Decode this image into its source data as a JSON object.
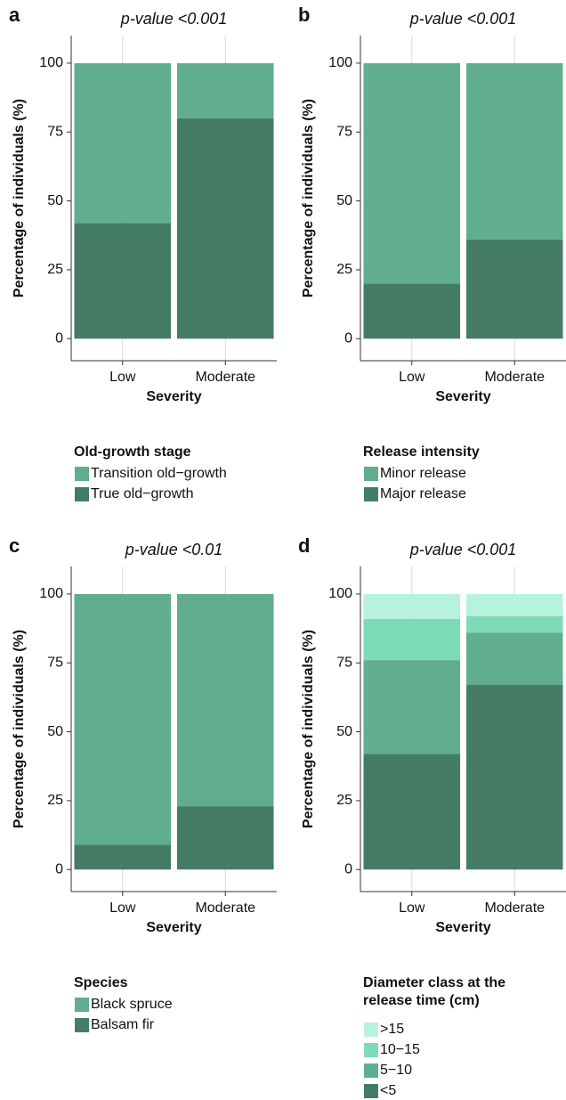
{
  "chart_data": [
    {
      "type": "bar",
      "stacked": true,
      "panel": "a",
      "title": "p-value <0.001",
      "xlabel": "Severity",
      "ylabel": "Percentage of individuals (%)",
      "categories": [
        "Low",
        "Moderate"
      ],
      "legend_title": "Old-growth stage",
      "series": [
        {
          "name": "True old−growth",
          "color": "#457c65",
          "values": [
            42,
            80
          ]
        },
        {
          "name": "Transition old−growth",
          "color": "#60ae8e",
          "values": [
            58,
            20
          ]
        }
      ],
      "ylim": [
        -8,
        110
      ],
      "yticks": [
        0,
        25,
        50,
        75,
        100
      ],
      "grid": "x"
    },
    {
      "type": "bar",
      "stacked": true,
      "panel": "b",
      "title": "p-value <0.001",
      "xlabel": "Severity",
      "ylabel": "Percentage of individuals (%)",
      "categories": [
        "Low",
        "Moderate"
      ],
      "legend_title": "Release intensity",
      "series": [
        {
          "name": "Major release",
          "color": "#457c65",
          "values": [
            20,
            36
          ]
        },
        {
          "name": "Minor release",
          "color": "#60ae8e",
          "values": [
            80,
            64
          ]
        }
      ],
      "ylim": [
        -8,
        110
      ],
      "yticks": [
        0,
        25,
        50,
        75,
        100
      ],
      "grid": "x"
    },
    {
      "type": "bar",
      "stacked": true,
      "panel": "c",
      "title": "p-value <0.01",
      "xlabel": "Severity",
      "ylabel": "Percentage of individuals (%)",
      "categories": [
        "Low",
        "Moderate"
      ],
      "legend_title": "Species",
      "series": [
        {
          "name": "Balsam fir",
          "color": "#457c65",
          "values": [
            9,
            23
          ]
        },
        {
          "name": "Black spruce",
          "color": "#60ae8e",
          "values": [
            91,
            77
          ]
        }
      ],
      "ylim": [
        -8,
        110
      ],
      "yticks": [
        0,
        25,
        50,
        75,
        100
      ],
      "grid": "x"
    },
    {
      "type": "bar",
      "stacked": true,
      "panel": "d",
      "title": "p-value <0.001",
      "xlabel": "Severity",
      "ylabel": "Percentage of individuals (%)",
      "categories": [
        "Low",
        "Moderate"
      ],
      "legend_title": "Diameter class at the release time (cm)",
      "series": [
        {
          "name": "<5",
          "color": "#457c65",
          "values": [
            42,
            67
          ]
        },
        {
          "name": "5−10",
          "color": "#60ae8e",
          "values": [
            34,
            19
          ]
        },
        {
          "name": "10−15",
          "color": "#7ddbb8",
          "values": [
            15,
            6
          ]
        },
        {
          "name": ">15",
          "color": "#b6f2dc",
          "values": [
            9,
            8
          ]
        }
      ],
      "ylim": [
        -8,
        110
      ],
      "yticks": [
        0,
        25,
        50,
        75,
        100
      ],
      "grid": "x"
    }
  ]
}
